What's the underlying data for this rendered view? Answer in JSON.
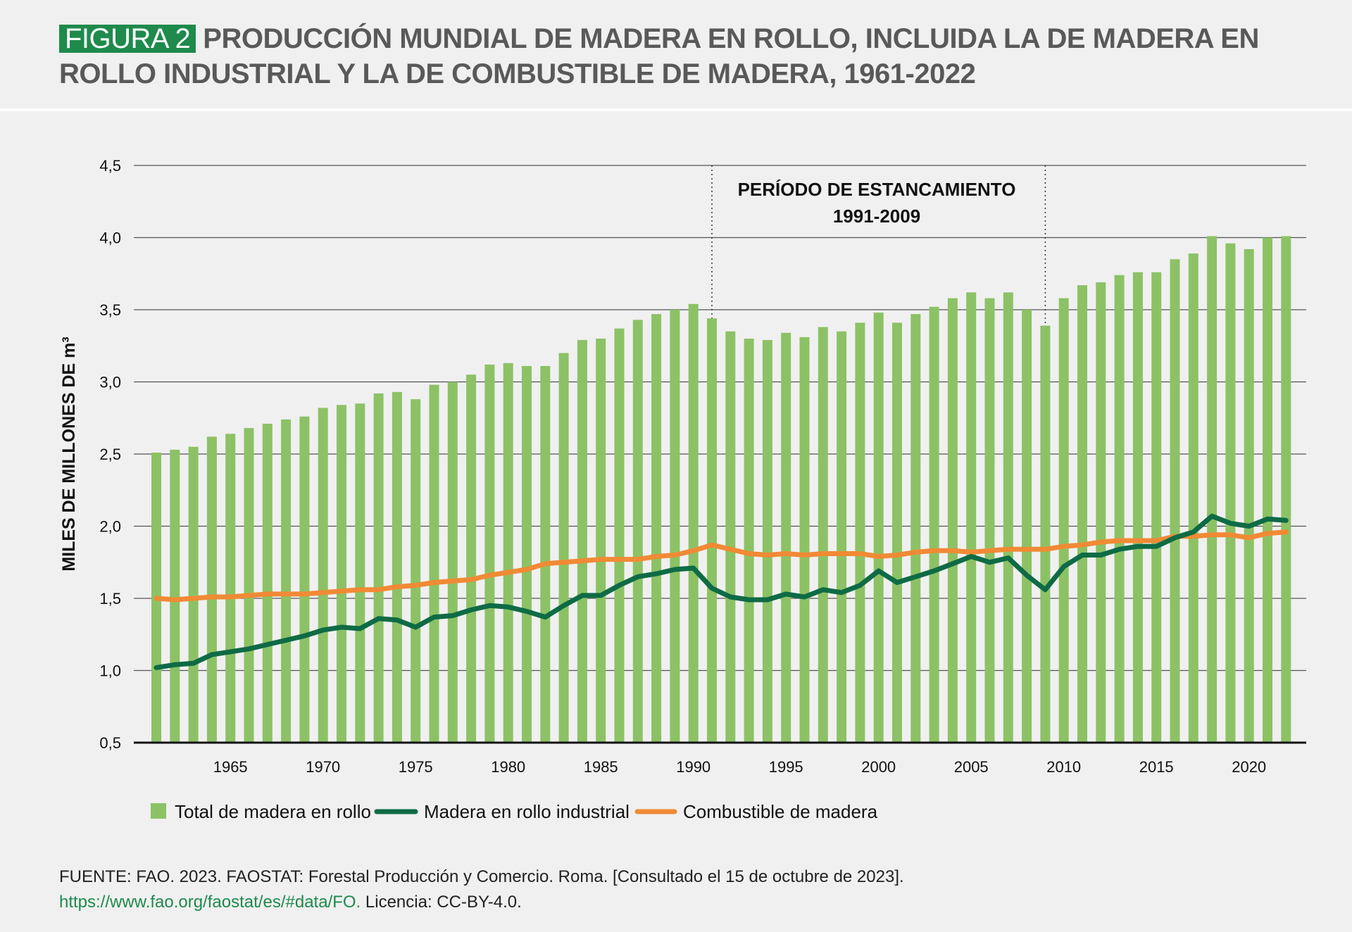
{
  "header": {
    "badge": "FIGURA 2",
    "title": "PRODUCCIÓN MUNDIAL DE MADERA EN ROLLO, INCLUIDA LA DE MADERA EN ROLLO INDUSTRIAL Y LA DE COMBUSTIBLE DE MADERA, 1961-2022"
  },
  "annotation": {
    "line1": "PERÍODO DE ESTANCAMIENTO",
    "line2": "1991-2009"
  },
  "source": {
    "text": "FUENTE: FAO. 2023. FAOSTAT: Forestal Producción y Comercio. Roma. [Consultado el 15 de octubre de 2023].",
    "link": "https://www.fao.org/faostat/es/#data/FO.",
    "license": "Licencia: CC-BY-4.0."
  },
  "colors": {
    "total": "#8cc265",
    "industrial": "#0e6b45",
    "fuel": "#f08a35",
    "badge": "#1e8a4c",
    "grid": "#555555"
  },
  "chart_data": {
    "type": "bar",
    "ylabel": "MILES DE MILLONES DE m³",
    "xlabel": "",
    "ylim": [
      0.5,
      4.5
    ],
    "yticks": [
      "0,5",
      "1,0",
      "1,5",
      "2,0",
      "2,5",
      "3,0",
      "3,5",
      "4,0",
      "4,5"
    ],
    "ytick_values": [
      0.5,
      1.0,
      1.5,
      2.0,
      2.5,
      3.0,
      3.5,
      4.0,
      4.5
    ],
    "xticks": [
      1965,
      1970,
      1975,
      1980,
      1985,
      1990,
      1995,
      2000,
      2005,
      2010,
      2015,
      2020
    ],
    "legend_position": "bottom-left",
    "stagnation_period": [
      1991,
      2009
    ],
    "years": [
      1961,
      1962,
      1963,
      1964,
      1965,
      1966,
      1967,
      1968,
      1969,
      1970,
      1971,
      1972,
      1973,
      1974,
      1975,
      1976,
      1977,
      1978,
      1979,
      1980,
      1981,
      1982,
      1983,
      1984,
      1985,
      1986,
      1987,
      1988,
      1989,
      1990,
      1991,
      1992,
      1993,
      1994,
      1995,
      1996,
      1997,
      1998,
      1999,
      2000,
      2001,
      2002,
      2003,
      2004,
      2005,
      2006,
      2007,
      2008,
      2009,
      2010,
      2011,
      2012,
      2013,
      2014,
      2015,
      2016,
      2017,
      2018,
      2019,
      2020,
      2021,
      2022
    ],
    "series": [
      {
        "name": "Total de madera en rollo",
        "kind": "bar",
        "values": [
          2.51,
          2.53,
          2.55,
          2.62,
          2.64,
          2.68,
          2.71,
          2.74,
          2.76,
          2.82,
          2.84,
          2.85,
          2.92,
          2.93,
          2.88,
          2.98,
          3.0,
          3.05,
          3.12,
          3.13,
          3.11,
          3.11,
          3.2,
          3.29,
          3.3,
          3.37,
          3.43,
          3.47,
          3.5,
          3.54,
          3.44,
          3.35,
          3.3,
          3.29,
          3.34,
          3.31,
          3.38,
          3.35,
          3.41,
          3.48,
          3.41,
          3.47,
          3.52,
          3.58,
          3.62,
          3.58,
          3.62,
          3.5,
          3.39,
          3.58,
          3.67,
          3.69,
          3.74,
          3.76,
          3.76,
          3.85,
          3.89,
          4.01,
          3.96,
          3.92,
          4.0,
          4.01
        ]
      },
      {
        "name": "Madera en rollo industrial",
        "kind": "line",
        "values": [
          1.02,
          1.04,
          1.05,
          1.11,
          1.13,
          1.15,
          1.18,
          1.21,
          1.24,
          1.28,
          1.3,
          1.29,
          1.36,
          1.35,
          1.3,
          1.37,
          1.38,
          1.42,
          1.45,
          1.44,
          1.41,
          1.37,
          1.45,
          1.52,
          1.52,
          1.59,
          1.65,
          1.67,
          1.7,
          1.71,
          1.57,
          1.51,
          1.49,
          1.49,
          1.53,
          1.51,
          1.56,
          1.54,
          1.59,
          1.69,
          1.61,
          1.65,
          1.69,
          1.74,
          1.79,
          1.75,
          1.78,
          1.66,
          1.56,
          1.72,
          1.8,
          1.8,
          1.84,
          1.86,
          1.86,
          1.92,
          1.96,
          2.07,
          2.02,
          2.0,
          2.05,
          2.04
        ]
      },
      {
        "name": "Combustible de madera",
        "kind": "line",
        "values": [
          1.5,
          1.49,
          1.5,
          1.51,
          1.51,
          1.52,
          1.53,
          1.53,
          1.53,
          1.54,
          1.55,
          1.56,
          1.56,
          1.58,
          1.59,
          1.61,
          1.62,
          1.63,
          1.66,
          1.68,
          1.7,
          1.74,
          1.75,
          1.76,
          1.77,
          1.77,
          1.77,
          1.79,
          1.8,
          1.83,
          1.87,
          1.84,
          1.81,
          1.8,
          1.81,
          1.8,
          1.81,
          1.81,
          1.81,
          1.79,
          1.8,
          1.82,
          1.83,
          1.83,
          1.82,
          1.83,
          1.84,
          1.84,
          1.84,
          1.86,
          1.87,
          1.89,
          1.9,
          1.9,
          1.9,
          1.93,
          1.93,
          1.94,
          1.94,
          1.92,
          1.95,
          1.96
        ]
      }
    ]
  }
}
